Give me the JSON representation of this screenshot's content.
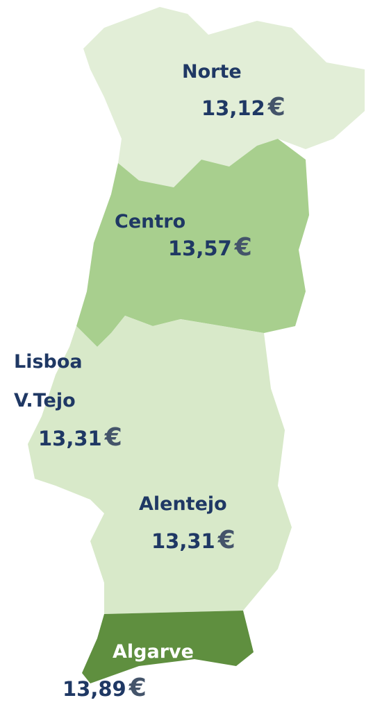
{
  "currency": "€",
  "regions": [
    {
      "name_lines": [
        "Norte"
      ],
      "value": "13,12"
    },
    {
      "name_lines": [
        "Centro"
      ],
      "value": "13,57"
    },
    {
      "name_lines": [
        "Lisboa",
        "V.Tejo"
      ],
      "value": "13,31"
    },
    {
      "name_lines": [
        "Alentejo"
      ],
      "value": "13,31"
    },
    {
      "name_lines": [
        "Algarve"
      ],
      "value": "13,89"
    }
  ]
}
